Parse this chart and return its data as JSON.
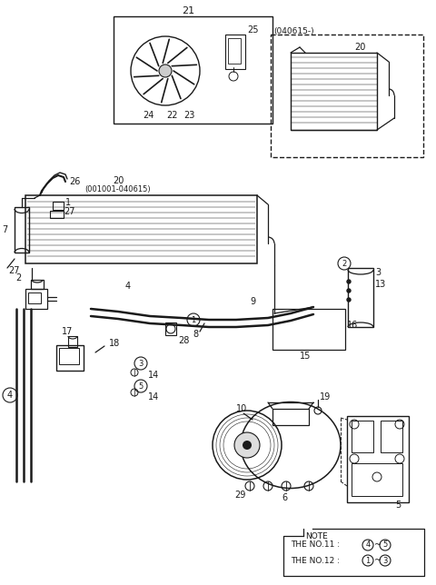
{
  "bg_color": "#ffffff",
  "line_color": "#1a1a1a",
  "note_lines": [
    "NOTE",
    "THE NO.11 :④~⑤",
    "THE NO.12 :①~③"
  ],
  "circled_numbers": [
    "1",
    "2",
    "3",
    "4",
    "5"
  ],
  "part_numbers": [
    "1",
    "2",
    "3",
    "4",
    "5",
    "6",
    "7",
    "8",
    "9",
    "10",
    "13",
    "14",
    "15",
    "16",
    "17",
    "18",
    "19",
    "20",
    "21",
    "22",
    "23",
    "24",
    "25",
    "26",
    "27",
    "28",
    "29"
  ]
}
